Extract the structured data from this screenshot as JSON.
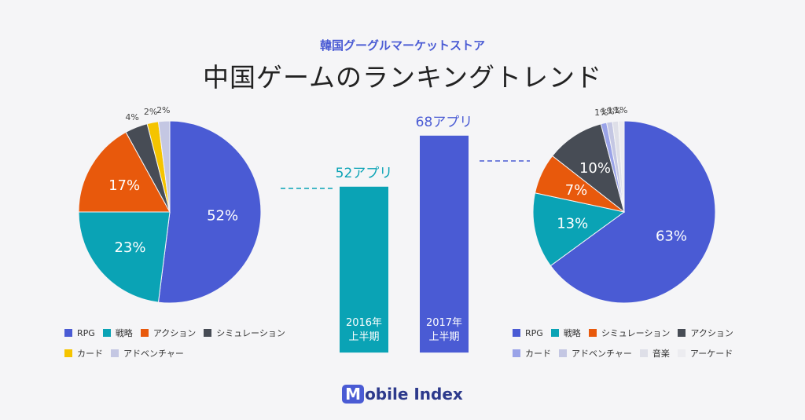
{
  "header": {
    "subtitle": "韓国グーグルマーケットストア",
    "title": "中国ゲームのランキングトレンド"
  },
  "logo": {
    "mark": "M",
    "text": "obile Index"
  },
  "chart_data": [
    {
      "type": "pie",
      "period": "2016年上半期",
      "slices": [
        {
          "name": "RPG",
          "value": 52,
          "label": "52%",
          "color": "#4a5bd4"
        },
        {
          "name": "戦略",
          "value": 23,
          "label": "23%",
          "color": "#0aa3b5"
        },
        {
          "name": "アクション",
          "value": 17,
          "label": "17%",
          "color": "#e8590c"
        },
        {
          "name": "シミュレーション",
          "value": 4,
          "label": "4%",
          "color": "#474c55"
        },
        {
          "name": "カード",
          "value": 2,
          "label": "2%",
          "color": "#f5c400"
        },
        {
          "name": "アドベンチャー",
          "value": 2,
          "label": "2%",
          "color": "#c4c7e3"
        }
      ]
    },
    {
      "type": "bar",
      "ylabel": "",
      "ylim": [
        0,
        80
      ],
      "categories": [
        "2016年上半期",
        "2017年上半期"
      ],
      "category_lines": [
        [
          "2016年",
          "上半期"
        ],
        [
          "2017年",
          "上半期"
        ]
      ],
      "values": [
        52,
        68
      ],
      "value_labels": [
        "52アプリ",
        "68アプリ"
      ],
      "colors": [
        "#0aa3b5",
        "#4a5bd4"
      ]
    },
    {
      "type": "pie",
      "period": "2017年上半期",
      "slices": [
        {
          "name": "RPG",
          "value": 63,
          "label": "63%",
          "color": "#4a5bd4"
        },
        {
          "name": "戦略",
          "value": 13,
          "label": "13%",
          "color": "#0aa3b5"
        },
        {
          "name": "シミュレーション",
          "value": 7,
          "label": "7%",
          "color": "#e8590c"
        },
        {
          "name": "アクション",
          "value": 10,
          "label": "10%",
          "color": "#474c55"
        },
        {
          "name": "カード",
          "value": 1,
          "label": "1%",
          "color": "#9aa3e8"
        },
        {
          "name": "アドベンチャー",
          "value": 1,
          "label": "1%",
          "color": "#c4c7e3"
        },
        {
          "name": "音楽",
          "value": 1,
          "label": "1%",
          "color": "#dedfe8"
        },
        {
          "name": "アーケード",
          "value": 1,
          "label": "1%",
          "color": "#ececf0"
        }
      ]
    }
  ]
}
